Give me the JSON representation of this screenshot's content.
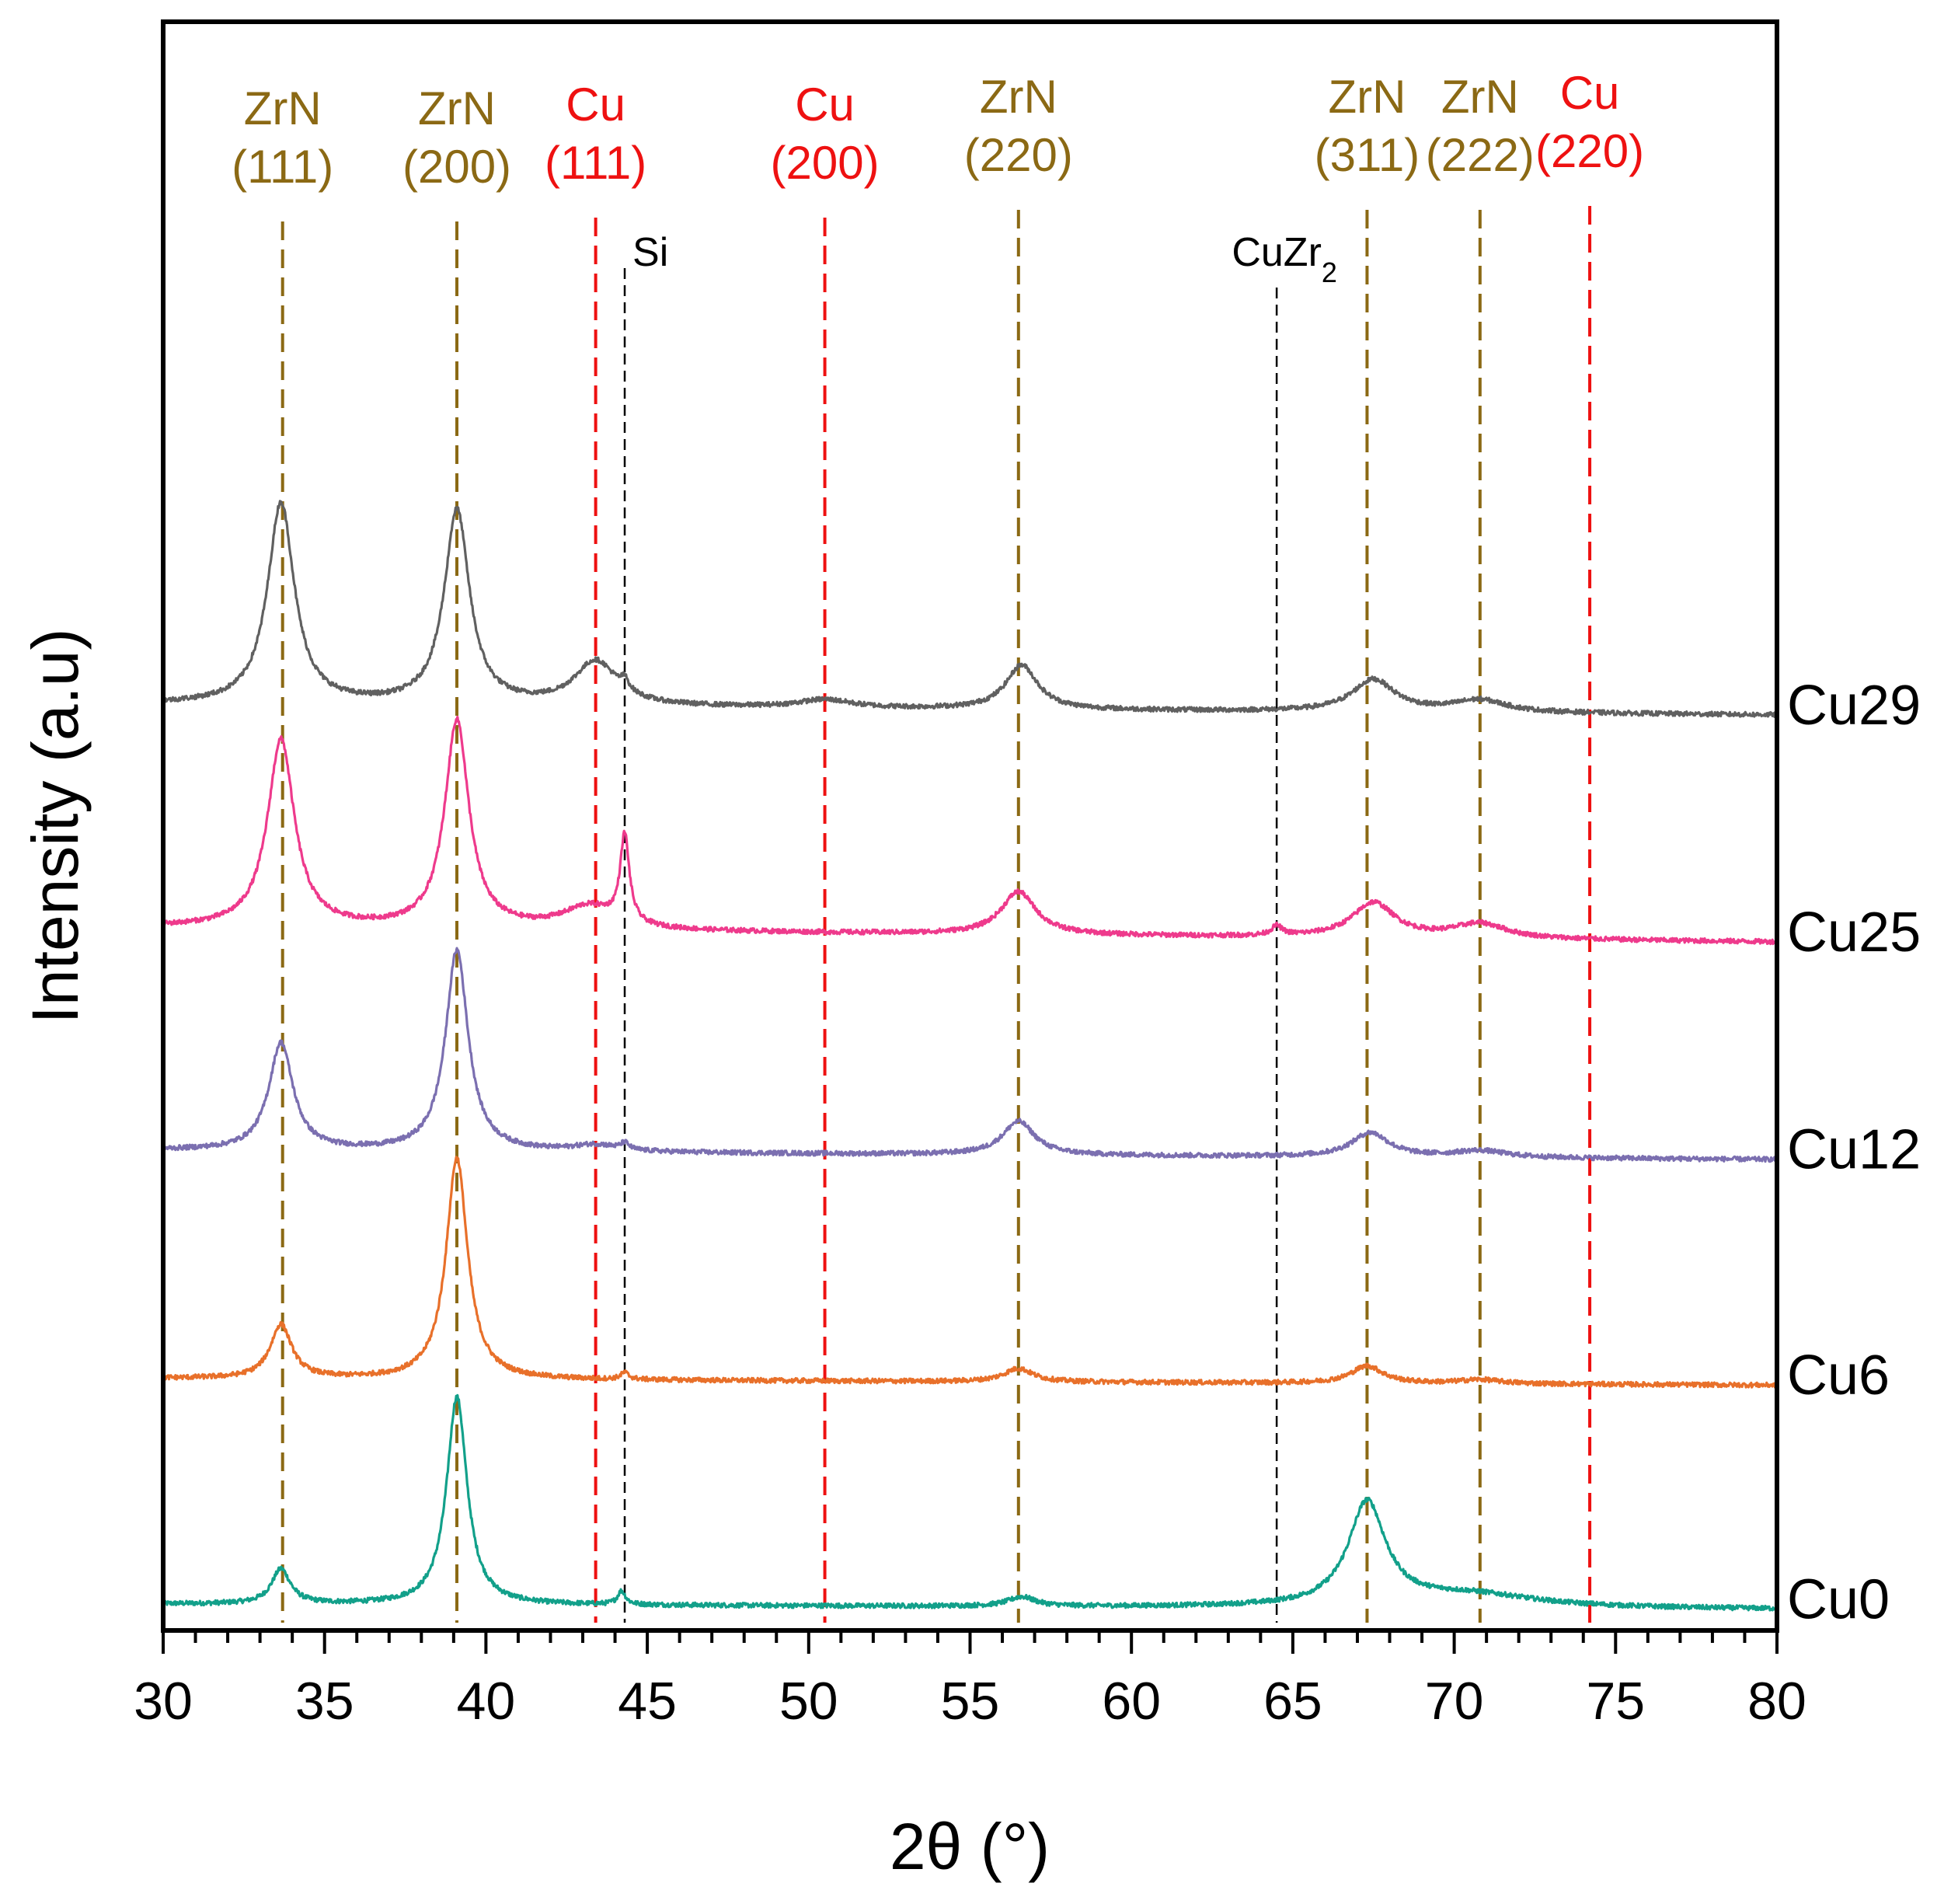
{
  "chart_data": {
    "type": "line",
    "title": "",
    "xlabel": "2θ (°)",
    "ylabel": "Intensity (a.u)",
    "xlim": [
      30,
      80
    ],
    "ylim": [
      0,
      100
    ],
    "xticks": [
      "30",
      "35",
      "40",
      "45",
      "50",
      "55",
      "60",
      "65",
      "70",
      "75",
      "80"
    ],
    "yticks": [],
    "grid": false,
    "reference_lines": [
      {
        "phase": "ZrN",
        "hkl": "(111)",
        "x": 33.7,
        "color": "#8B6914"
      },
      {
        "phase": "ZrN",
        "hkl": "(200)",
        "x": 39.1,
        "color": "#8B6914"
      },
      {
        "phase": "Cu",
        "hkl": "(111)",
        "x": 43.4,
        "color": "#EE1111"
      },
      {
        "phase": "Cu",
        "hkl": "(200)",
        "x": 50.5,
        "color": "#EE1111"
      },
      {
        "phase": "ZrN",
        "hkl": "(220)",
        "x": 56.5,
        "color": "#8B6914"
      },
      {
        "phase": "ZrN",
        "hkl": "(311)",
        "x": 67.3,
        "color": "#8B6914"
      },
      {
        "phase": "ZrN",
        "hkl": "(222)",
        "x": 70.8,
        "color": "#8B6914"
      },
      {
        "phase": "Cu",
        "hkl": "(220)",
        "x": 74.2,
        "color": "#EE1111"
      }
    ],
    "aux_lines": [
      {
        "label": "Si",
        "sub": "",
        "x": 44.3,
        "color": "#000000"
      },
      {
        "label": "CuZr",
        "sub": "2",
        "x": 64.5,
        "color": "#000000"
      }
    ],
    "series": [
      {
        "name": "Cu0",
        "color": "#12A08A",
        "baseline": [
          1.5,
          1.1
        ],
        "offset": 0,
        "peaks": [
          [
            33.65,
            2.6,
            0.35
          ],
          [
            39.1,
            15.5,
            0.38
          ],
          [
            44.2,
            1.0,
            0.15
          ],
          [
            56.6,
            0.7,
            0.5
          ],
          [
            67.3,
            7.7,
            0.7
          ],
          [
            70.5,
            1.0,
            2.5
          ]
        ]
      },
      {
        "name": "Cu6",
        "color": "#E8702A",
        "baseline": [
          18.3,
          17.8
        ],
        "offset": 18,
        "peaks": [
          [
            33.65,
            4.0,
            0.4
          ],
          [
            39.1,
            16.5,
            0.4
          ],
          [
            44.3,
            0.5,
            0.15
          ],
          [
            56.5,
            1.0,
            0.55
          ],
          [
            67.3,
            1.3,
            0.6
          ],
          [
            70.8,
            0.3,
            0.8
          ]
        ]
      },
      {
        "name": "Cu12",
        "color": "#7B6FB0",
        "baseline": [
          35.3,
          34.6
        ],
        "offset": 35,
        "peaks": [
          [
            33.65,
            8.0,
            0.45
          ],
          [
            39.1,
            15.0,
            0.42
          ],
          [
            43.4,
            0.5,
            0.8
          ],
          [
            44.3,
            0.5,
            0.15
          ],
          [
            56.5,
            2.5,
            0.6
          ],
          [
            67.4,
            1.8,
            0.7
          ],
          [
            70.8,
            0.5,
            1.0
          ]
        ]
      },
      {
        "name": "Cu25",
        "color": "#EE3A8C",
        "baseline": [
          51.9,
          50.8
        ],
        "offset": 51,
        "peaks": [
          [
            33.65,
            14.0,
            0.5
          ],
          [
            39.1,
            15.5,
            0.45
          ],
          [
            43.2,
            1.7,
            1.0
          ],
          [
            44.3,
            6.5,
            0.17
          ],
          [
            56.5,
            3.2,
            0.65
          ],
          [
            64.5,
            0.7,
            0.2
          ],
          [
            67.5,
            2.6,
            0.8
          ],
          [
            70.8,
            1.1,
            1.0
          ]
        ]
      },
      {
        "name": "Cu29",
        "color": "#606060",
        "baseline": [
          68.5,
          67.7
        ],
        "offset": 68,
        "peaks": [
          [
            33.65,
            15.0,
            0.5
          ],
          [
            39.1,
            14.5,
            0.47
          ],
          [
            43.4,
            3.3,
            0.8
          ],
          [
            44.3,
            0.8,
            0.15
          ],
          [
            50.5,
            0.6,
            1.0
          ],
          [
            56.6,
            3.3,
            0.6
          ],
          [
            67.5,
            2.4,
            0.8
          ],
          [
            70.8,
            0.9,
            1.0
          ]
        ]
      }
    ]
  }
}
